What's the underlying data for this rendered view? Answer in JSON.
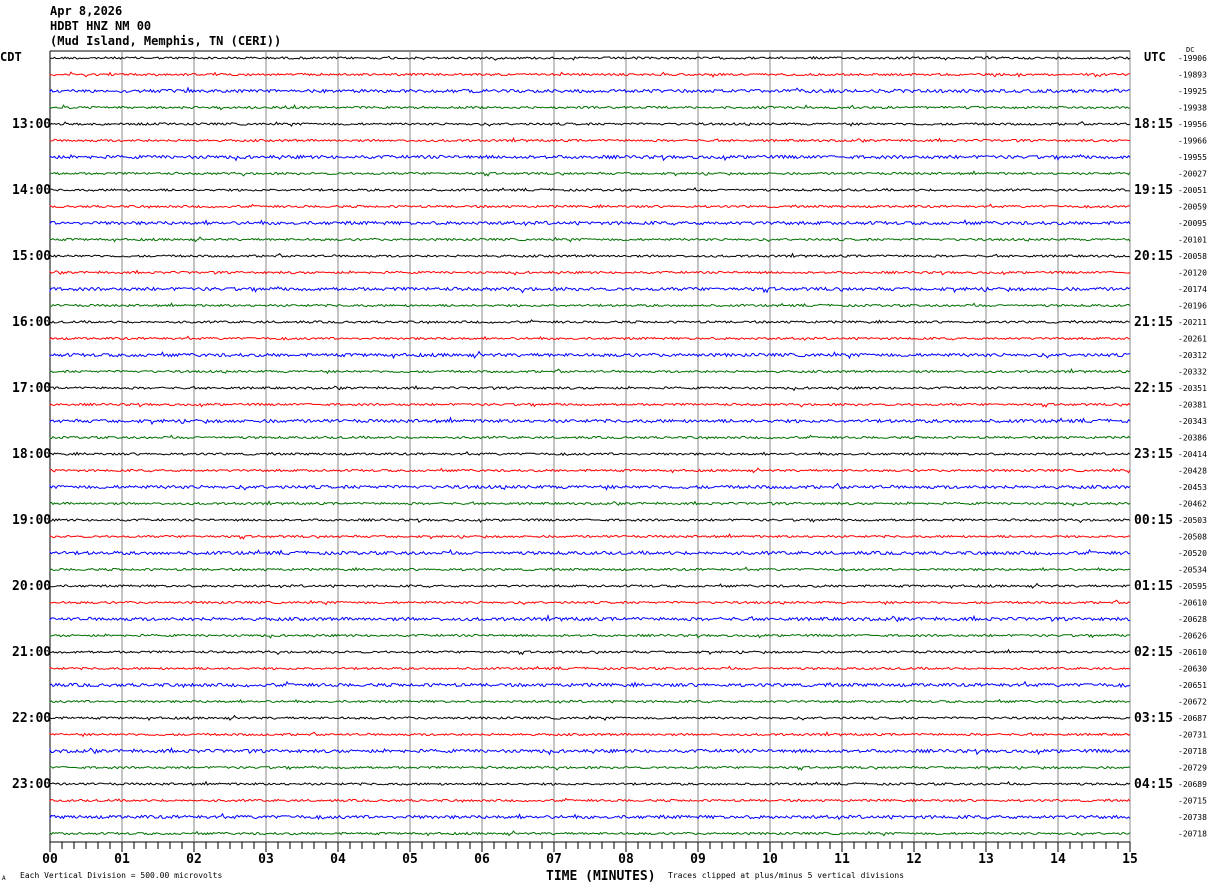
{
  "header": {
    "date": "Apr 8,2026",
    "station": "HDBT HNZ NM 00",
    "location": "(Mud Island, Memphis, TN (CERI))"
  },
  "chart_data": {
    "type": "line",
    "title": "HDBT HNZ NM 00",
    "left_axis_label": "CDT",
    "right_axis_label": "UTC",
    "dc_label": "DC",
    "xlabel": "TIME (MINUTES)",
    "x_ticks": [
      "00",
      "01",
      "02",
      "03",
      "04",
      "05",
      "06",
      "07",
      "08",
      "09",
      "10",
      "11",
      "12",
      "13",
      "14",
      "15"
    ],
    "xlim": [
      0,
      15
    ],
    "minor_tick_seconds": 10,
    "grid": true,
    "trace_colors": [
      "#000000",
      "#ff0000",
      "#0000ff",
      "#007000"
    ],
    "rows_per_hour": 4,
    "left_hour_labels": [
      "",
      "13:00",
      "14:00",
      "15:00",
      "16:00",
      "17:00",
      "18:00",
      "19:00",
      "20:00",
      "21:00",
      "22:00",
      "23:00"
    ],
    "right_hour_labels": [
      "",
      "18:15",
      "19:15",
      "20:15",
      "21:15",
      "22:15",
      "23:15",
      "00:15",
      "01:15",
      "02:15",
      "03:15",
      "04:15"
    ],
    "dc_offsets": [
      -19906,
      -19893,
      -19925,
      -19938,
      -19956,
      -19966,
      -19955,
      -20027,
      -20051,
      -20059,
      -20095,
      -20101,
      -20058,
      -20120,
      -20174,
      -20196,
      -20211,
      -20261,
      -20312,
      -20332,
      -20351,
      -20381,
      -20343,
      -20386,
      -20414,
      -20428,
      -20453,
      -20462,
      -20503,
      -20508,
      -20520,
      -20534,
      -20595,
      -20610,
      -20628,
      -20626,
      -20610,
      -20630,
      -20651,
      -20672,
      -20687,
      -20731,
      -20718,
      -20729,
      -20689,
      -20715,
      -20738,
      -20718
    ],
    "scale_note": "Each Vertical Division =  500.00 microvolts",
    "clip_note": "Traces clipped at plus/minus 5 vertical divisions"
  },
  "footer": {
    "logo_text": "A"
  }
}
